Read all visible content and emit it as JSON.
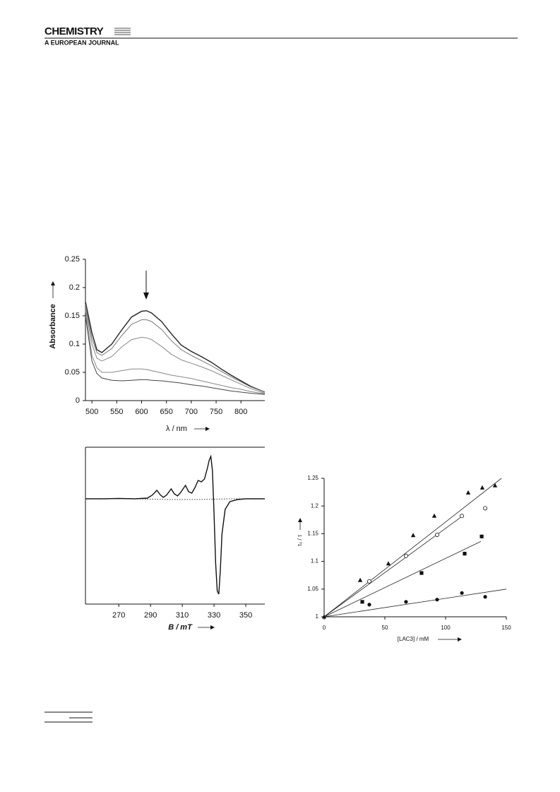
{
  "header": {
    "journal": "CHEMISTRY",
    "subtitle": "A EUROPEAN JOURNAL"
  },
  "chart_data": [
    {
      "type": "line",
      "xlabel": "λ / nm",
      "ylabel": "Absorbance",
      "xlim": [
        487,
        848
      ],
      "ylim": [
        0,
        0.25
      ],
      "xticks": [
        500,
        550,
        600,
        650,
        700,
        750,
        800
      ],
      "yticks": [
        0,
        0.05,
        0.1,
        0.15,
        0.2,
        0.25
      ],
      "x": [
        487,
        500,
        510,
        520,
        540,
        560,
        580,
        600,
        610,
        620,
        640,
        660,
        680,
        700,
        720,
        740,
        760,
        780,
        800,
        820,
        848
      ],
      "series": [
        {
          "color": "#222222",
          "values": [
            0.175,
            0.12,
            0.09,
            0.085,
            0.1,
            0.125,
            0.148,
            0.158,
            0.159,
            0.155,
            0.14,
            0.118,
            0.098,
            0.087,
            0.078,
            0.068,
            0.056,
            0.045,
            0.035,
            0.025,
            0.015
          ]
        },
        {
          "color": "#777777",
          "values": [
            0.17,
            0.11,
            0.085,
            0.08,
            0.092,
            0.115,
            0.135,
            0.143,
            0.143,
            0.14,
            0.126,
            0.106,
            0.09,
            0.08,
            0.071,
            0.062,
            0.052,
            0.042,
            0.033,
            0.024,
            0.015
          ]
        },
        {
          "color": "#888888",
          "values": [
            0.165,
            0.1,
            0.075,
            0.07,
            0.078,
            0.095,
            0.108,
            0.112,
            0.111,
            0.108,
            0.096,
            0.082,
            0.072,
            0.066,
            0.06,
            0.053,
            0.045,
            0.037,
            0.029,
            0.021,
            0.013
          ]
        },
        {
          "color": "#888888",
          "values": [
            0.16,
            0.08,
            0.058,
            0.05,
            0.05,
            0.053,
            0.056,
            0.056,
            0.055,
            0.053,
            0.049,
            0.045,
            0.042,
            0.039,
            0.035,
            0.031,
            0.027,
            0.023,
            0.02,
            0.016,
            0.012
          ]
        },
        {
          "color": "#444444",
          "values": [
            0.15,
            0.07,
            0.048,
            0.04,
            0.036,
            0.035,
            0.036,
            0.037,
            0.037,
            0.036,
            0.035,
            0.033,
            0.031,
            0.028,
            0.026,
            0.023,
            0.02,
            0.017,
            0.015,
            0.013,
            0.011
          ]
        }
      ]
    },
    {
      "type": "line",
      "xlabel": "B / mT",
      "xlim": [
        249,
        362
      ],
      "ylim": [
        -149,
        73
      ],
      "xticks": [
        270,
        290,
        310,
        330,
        350
      ],
      "series": [
        {
          "color": "#111111",
          "style": "solid",
          "x": [
            249,
            260,
            270,
            280,
            288,
            291,
            294,
            296,
            298,
            300,
            303,
            305,
            307,
            309,
            312,
            314,
            316,
            318,
            320,
            322,
            324,
            326,
            327,
            328,
            329,
            330,
            331,
            332,
            333,
            334,
            335,
            337,
            340,
            345,
            350,
            362
          ],
          "values": [
            0,
            0,
            0.5,
            0,
            1,
            5,
            12,
            6,
            2,
            5,
            14,
            7,
            4,
            9,
            19,
            10,
            8,
            16,
            26,
            24,
            28,
            45,
            55,
            60,
            40,
            -20,
            -90,
            -130,
            -135,
            -100,
            -50,
            -15,
            -4,
            -1,
            0,
            0
          ]
        },
        {
          "color": "#333333",
          "style": "dotted",
          "x": [
            249,
            280,
            300,
            320,
            340,
            362
          ],
          "values": [
            0,
            0,
            -1,
            -1,
            0,
            0
          ]
        }
      ]
    },
    {
      "type": "scatter",
      "xlabel": "[LAC3] / mM",
      "ylabel": "τ₀ / τ",
      "xlim": [
        0,
        150
      ],
      "ylim": [
        1,
        1.25
      ],
      "xticks": [
        0,
        50,
        100,
        150
      ],
      "yticks": [
        1,
        1.05,
        1.1,
        1.15,
        1.2,
        1.25
      ],
      "series": [
        {
          "marker": "triangle",
          "color": "#111111",
          "x": [
            0,
            29.7,
            52.9,
            73.3,
            90.7,
            118.6,
            130.2,
            140.7
          ],
          "values": [
            1,
            1.066,
            1.096,
            1.147,
            1.182,
            1.224,
            1.233,
            1.237
          ],
          "fit": {
            "x": [
              0,
              146
            ],
            "values": [
              1,
              1.25
            ]
          }
        },
        {
          "marker": "circle-open",
          "color": "#111111",
          "x": [
            37.2,
            67.4,
            93,
            113.4,
            132.6
          ],
          "values": [
            1.064,
            1.11,
            1.148,
            1.182,
            1.196
          ],
          "fit": {
            "x": [
              0,
              114
            ],
            "values": [
              1,
              1.182
            ]
          }
        },
        {
          "marker": "square",
          "color": "#111111",
          "x": [
            31.4,
            80.2,
            115.7,
            129.7
          ],
          "values": [
            1.027,
            1.079,
            1.114,
            1.145
          ],
          "fit": {
            "x": [
              0,
              129
            ],
            "values": [
              1,
              1.136
            ]
          }
        },
        {
          "marker": "circle",
          "color": "#111111",
          "x": [
            37.2,
            67.4,
            93,
            113.4,
            132.6
          ],
          "values": [
            1.022,
            1.027,
            1.031,
            1.043,
            1.036
          ],
          "fit": {
            "x": [
              0,
              150
            ],
            "values": [
              1,
              1.05
            ]
          }
        }
      ]
    }
  ]
}
